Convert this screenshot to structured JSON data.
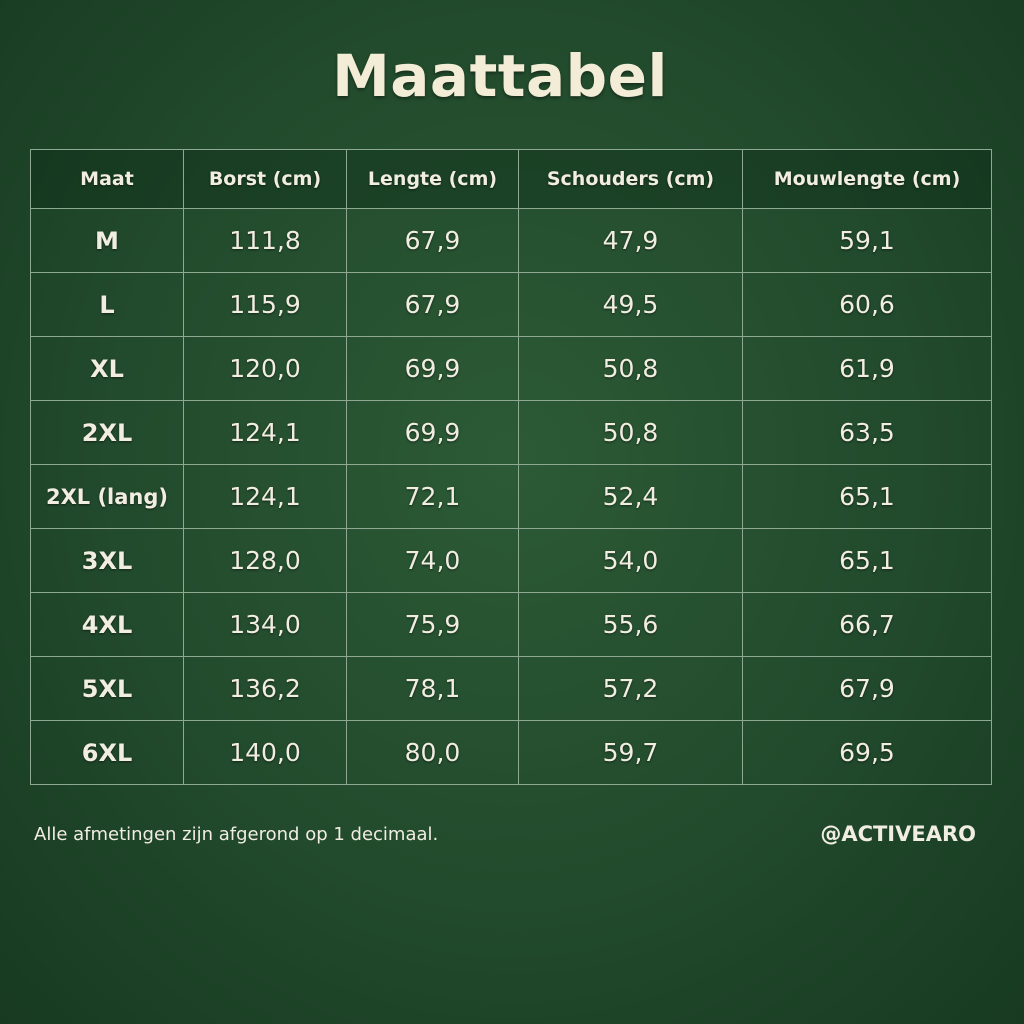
{
  "title": "Maattabel",
  "table": {
    "headers": [
      "Maat",
      "Borst (cm)",
      "Lengte (cm)",
      "Schouders (cm)",
      "Mouwlengte (cm)"
    ],
    "rows": [
      [
        "M",
        "111,8",
        "67,9",
        "47,9",
        "59,1"
      ],
      [
        "L",
        "115,9",
        "67,9",
        "49,5",
        "60,6"
      ],
      [
        "XL",
        "120,0",
        "69,9",
        "50,8",
        "61,9"
      ],
      [
        "2XL",
        "124,1",
        "69,9",
        "50,8",
        "63,5"
      ],
      [
        "2XL (lang)",
        "124,1",
        "72,1",
        "52,4",
        "65,1"
      ],
      [
        "3XL",
        "128,0",
        "74,0",
        "54,0",
        "65,1"
      ],
      [
        "4XL",
        "134,0",
        "75,9",
        "55,6",
        "66,7"
      ],
      [
        "5XL",
        "136,2",
        "78,1",
        "57,2",
        "67,9"
      ],
      [
        "6XL",
        "140,0",
        "80,0",
        "59,7",
        "69,5"
      ]
    ]
  },
  "footer": {
    "note": "Alle afmetingen zijn afgerond op 1 decimaal.",
    "handle": "@ACTIVEARO"
  }
}
